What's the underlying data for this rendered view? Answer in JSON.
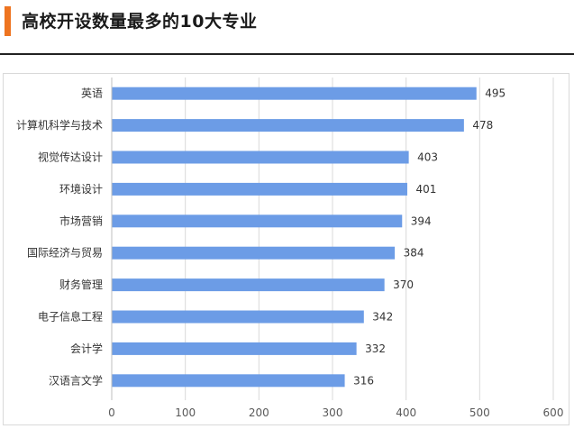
{
  "header": {
    "title": "高校开设数量最多的10大专业",
    "accent_color": "#ee7420"
  },
  "chart_data": {
    "type": "bar",
    "orientation": "horizontal",
    "title": "高校开设数量最多的10大专业",
    "categories": [
      "英语",
      "计算机科学与技术",
      "视觉传达设计",
      "环境设计",
      "市场营销",
      "国际经济与贸易",
      "财务管理",
      "电子信息工程",
      "会计学",
      "汉语言文学"
    ],
    "values": [
      495,
      478,
      403,
      401,
      394,
      384,
      370,
      342,
      332,
      316
    ],
    "xlim": [
      0,
      600
    ],
    "xticks": [
      0,
      100,
      200,
      300,
      400,
      500,
      600
    ],
    "grid": true,
    "legend": "none",
    "data_labels": true,
    "bar_color": "#6c9ce6"
  }
}
